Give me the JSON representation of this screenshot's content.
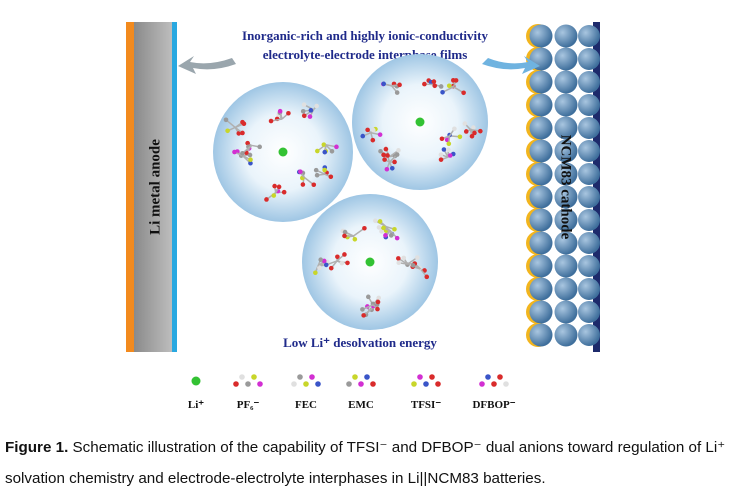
{
  "figure": {
    "top_label_line1": "Inorganic-rich and highly ionic-conductivity",
    "top_label_line2": "electrolyte-electrode interphase films",
    "anode_label": "Li metal anode",
    "cathode_label": "NCM83 cathode",
    "bottom_label": "Low Li⁺ desolvation energy",
    "legend": [
      "Li⁺",
      "PF₆⁻",
      "FEC",
      "EMC",
      "TFSI⁻",
      "DFBOP⁻"
    ]
  },
  "caption": {
    "label": "Figure 1.",
    "text": "Schematic illustration of the capability of TFSI⁻ and DFBOP⁻ dual anions toward regulation of Li⁺ solvation chemistry and electrode-electrolyte interphases in Li||NCM83 batteries."
  }
}
